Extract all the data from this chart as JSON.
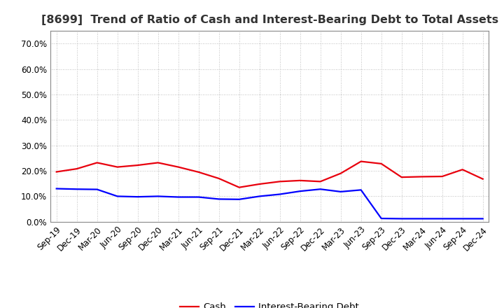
{
  "title": "[8699]  Trend of Ratio of Cash and Interest-Bearing Debt to Total Assets",
  "x_labels": [
    "Sep-19",
    "Dec-19",
    "Mar-20",
    "Jun-20",
    "Sep-20",
    "Dec-20",
    "Mar-21",
    "Jun-21",
    "Sep-21",
    "Dec-21",
    "Mar-22",
    "Jun-22",
    "Sep-22",
    "Dec-22",
    "Mar-23",
    "Jun-23",
    "Sep-23",
    "Dec-23",
    "Mar-24",
    "Jun-24",
    "Sep-24",
    "Dec-24"
  ],
  "cash": [
    0.196,
    0.208,
    0.232,
    0.215,
    0.222,
    0.232,
    0.215,
    0.195,
    0.17,
    0.135,
    0.148,
    0.158,
    0.162,
    0.158,
    0.19,
    0.237,
    0.228,
    0.175,
    0.177,
    0.178,
    0.205,
    0.168
  ],
  "ibd": [
    0.13,
    0.128,
    0.127,
    0.1,
    0.098,
    0.1,
    0.097,
    0.097,
    0.089,
    0.088,
    0.1,
    0.108,
    0.12,
    0.128,
    0.118,
    0.125,
    0.013,
    0.012,
    0.012,
    0.012,
    0.012,
    0.012
  ],
  "cash_color": "#e8000d",
  "ibd_color": "#0000ff",
  "background_color": "#ffffff",
  "grid_color": "#aaaaaa",
  "ylim": [
    0.0,
    0.75
  ],
  "yticks": [
    0.0,
    0.1,
    0.2,
    0.3,
    0.4,
    0.5,
    0.6,
    0.7
  ],
  "legend_labels": [
    "Cash",
    "Interest-Bearing Debt"
  ],
  "title_fontsize": 11.5,
  "axis_fontsize": 8.5,
  "legend_fontsize": 9.5,
  "linewidth": 1.6
}
